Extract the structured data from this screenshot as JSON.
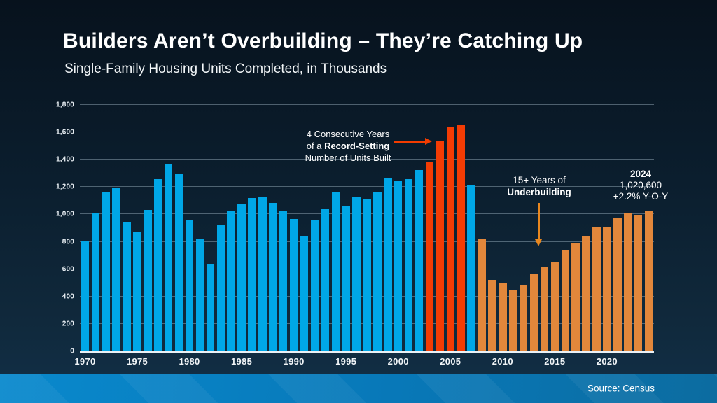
{
  "slide": {
    "title": "Builders Aren’t Overbuilding – They’re Catching Up",
    "subtitle": "Single-Family Housing Units Completed, in Thousands",
    "source": "Source: Census"
  },
  "colors": {
    "background_top": "#07121d",
    "background_bottom": "#123048",
    "bar_blue": "#00a7e7",
    "bar_red": "#f43c04",
    "bar_orange": "#e2873b",
    "arrow_red": "#f23c00",
    "arrow_orange": "#e8871f",
    "gridline": "rgba(175,195,210,0.42)",
    "footer_blue": "#0878b8"
  },
  "annotations": {
    "record": {
      "line1": "4 Consecutive Years",
      "line2_prefix": "of a ",
      "line2_bold": "Record-Setting",
      "line3": "Number of Units Built"
    },
    "underbuilding": {
      "line1": "15+ Years of",
      "line2_bold": "Underbuilding"
    },
    "latest": {
      "year_bold": "2024",
      "value": "1,020,600",
      "yoy": "+2.2% Y-O-Y"
    }
  },
  "chart_data": {
    "type": "bar",
    "title": "Single-Family Housing Units Completed, in Thousands",
    "xlabel": "",
    "ylabel": "",
    "grid": true,
    "ylim": [
      0,
      1800
    ],
    "ytick_values": [
      0,
      200,
      400,
      600,
      800,
      1000,
      1200,
      1400,
      1600,
      1800
    ],
    "ytick_labels": [
      "0",
      "200",
      "400",
      "600",
      "800",
      "1,000",
      "1,200",
      "1,400",
      "1,600",
      "1,800"
    ],
    "xtick_years": [
      1970,
      1975,
      1980,
      1985,
      1990,
      1995,
      2000,
      2005,
      2010,
      2015,
      2020
    ],
    "years": [
      1970,
      1971,
      1972,
      1973,
      1974,
      1975,
      1976,
      1977,
      1978,
      1979,
      1980,
      1981,
      1982,
      1983,
      1984,
      1985,
      1986,
      1987,
      1988,
      1989,
      1990,
      1991,
      1992,
      1993,
      1994,
      1995,
      1996,
      1997,
      1998,
      1999,
      2000,
      2001,
      2002,
      2003,
      2004,
      2005,
      2006,
      2007,
      2008,
      2009,
      2010,
      2011,
      2012,
      2013,
      2014,
      2015,
      2016,
      2017,
      2018,
      2019,
      2020,
      2021,
      2022,
      2023,
      2024
    ],
    "values": [
      802,
      1014,
      1160,
      1197,
      940,
      875,
      1034,
      1258,
      1369,
      1301,
      957,
      819,
      632,
      924,
      1025,
      1072,
      1120,
      1123,
      1085,
      1026,
      966,
      838,
      964,
      1039,
      1160,
      1066,
      1129,
      1116,
      1160,
      1270,
      1242,
      1256,
      1325,
      1386,
      1532,
      1636,
      1654,
      1218,
      819,
      520,
      496,
      447,
      483,
      569,
      620,
      648,
      738,
      795,
      840,
      903,
      912,
      971,
      1006,
      999,
      1021
    ],
    "palette": {
      "blue": "#00a7e7",
      "red": "#f43c04",
      "orange": "#e2873b"
    },
    "color_rules": [
      {
        "from": 1970,
        "to": 2002,
        "color": "blue"
      },
      {
        "from": 2003,
        "to": 2006,
        "color": "red"
      },
      {
        "from": 2007,
        "to": 2007,
        "color": "blue"
      },
      {
        "from": 2008,
        "to": 2024,
        "color": "orange"
      }
    ],
    "legend": null
  }
}
